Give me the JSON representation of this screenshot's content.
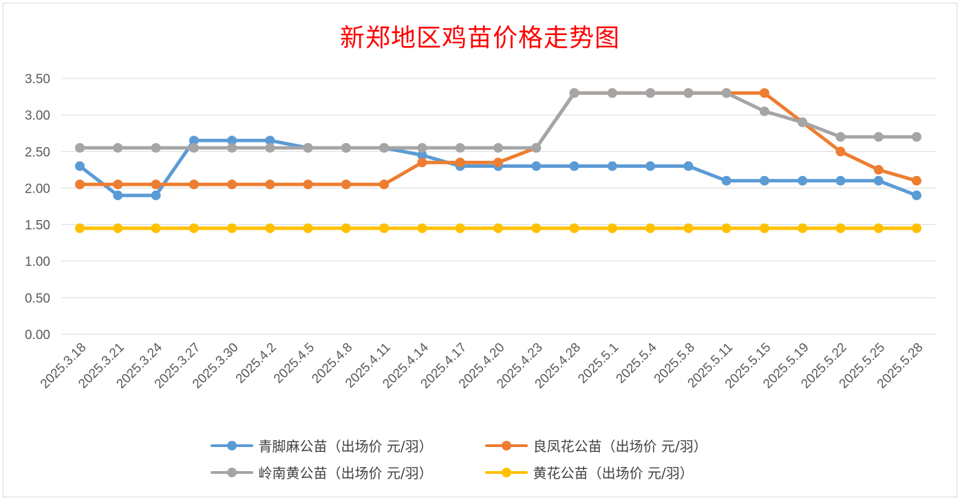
{
  "chart_data": {
    "type": "line",
    "title": "新郑地区鸡苗价格走势图",
    "xlabel": "",
    "ylabel": "",
    "ylim": [
      0,
      3.5
    ],
    "yticks": [
      "0.00",
      "0.50",
      "1.00",
      "1.50",
      "2.00",
      "2.50",
      "3.00",
      "3.50"
    ],
    "grid": true,
    "legend_position": "bottom",
    "categories": [
      "2025.3.18",
      "2025.3.21",
      "2025.3.24",
      "2025.3.27",
      "2025.3.30",
      "2025.4.2",
      "2025.4.5",
      "2025.4.8",
      "2025.4.11",
      "2025.4.14",
      "2025.4.17",
      "2025.4.20",
      "2025.4.23",
      "2025.4.28",
      "2025.5.1",
      "2025.5.4",
      "2025.5.8",
      "2025.5.11",
      "2025.5.15",
      "2025.5.19",
      "2025.5.22",
      "2025.5.25",
      "2025.5.28"
    ],
    "series": [
      {
        "name": "青脚麻公苗（出场价 元/羽）",
        "color": "#5b9bd5",
        "values": [
          2.3,
          1.9,
          1.9,
          2.65,
          2.65,
          2.65,
          2.55,
          2.55,
          2.55,
          2.45,
          2.3,
          2.3,
          2.3,
          2.3,
          2.3,
          2.3,
          2.3,
          2.1,
          2.1,
          2.1,
          2.1,
          2.1,
          1.9
        ]
      },
      {
        "name": "良凤花公苗（出场价 元/羽）",
        "color": "#ed7d31",
        "values": [
          2.05,
          2.05,
          2.05,
          2.05,
          2.05,
          2.05,
          2.05,
          2.05,
          2.05,
          2.35,
          2.35,
          2.35,
          2.55,
          3.3,
          3.3,
          3.3,
          3.3,
          3.3,
          3.3,
          2.9,
          2.5,
          2.25,
          2.1
        ]
      },
      {
        "name": "岭南黄公苗（出场价 元/羽）",
        "color": "#a5a5a5",
        "values": [
          2.55,
          2.55,
          2.55,
          2.55,
          2.55,
          2.55,
          2.55,
          2.55,
          2.55,
          2.55,
          2.55,
          2.55,
          2.55,
          3.3,
          3.3,
          3.3,
          3.3,
          3.3,
          3.05,
          2.9,
          2.7,
          2.7,
          2.7
        ]
      },
      {
        "name": "黄花公苗（出场价 元/羽）",
        "color": "#ffc000",
        "values": [
          1.45,
          1.45,
          1.45,
          1.45,
          1.45,
          1.45,
          1.45,
          1.45,
          1.45,
          1.45,
          1.45,
          1.45,
          1.45,
          1.45,
          1.45,
          1.45,
          1.45,
          1.45,
          1.45,
          1.45,
          1.45,
          1.45,
          1.45
        ]
      }
    ]
  }
}
